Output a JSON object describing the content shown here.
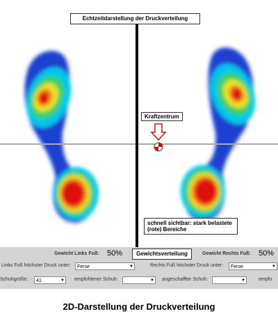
{
  "header": {
    "title": "Echtzeitdarstellung der Druckverteilung"
  },
  "annotations": {
    "center": "Kraftzentrum",
    "hint": "schnell sichtbar: stark belastete (rote) Bereiche"
  },
  "panel": {
    "weight_left_label": "Gewicht Links Fuß:",
    "weight_left_value": "50%",
    "button": "Gewichtsverteilung",
    "weight_right_label": "Gewicht Rechts Fuß:",
    "weight_right_value": "50%",
    "left_pressure_label": "Links Fuß höchster Druck unter:",
    "left_pressure_value": "Ferse",
    "right_pressure_label": "Rechts Fuß höchster Druck unter:",
    "right_pressure_value": "Ferse",
    "shoe_size_label": "Schuhgröße:",
    "shoe_size_value": "41",
    "recommended_label": "empfohlener Schuh:",
    "purchased_label": "angeschaffter Schuh:",
    "truncated_label": "empfo"
  },
  "caption": "2D-Darstellung der Druckverteilung"
}
